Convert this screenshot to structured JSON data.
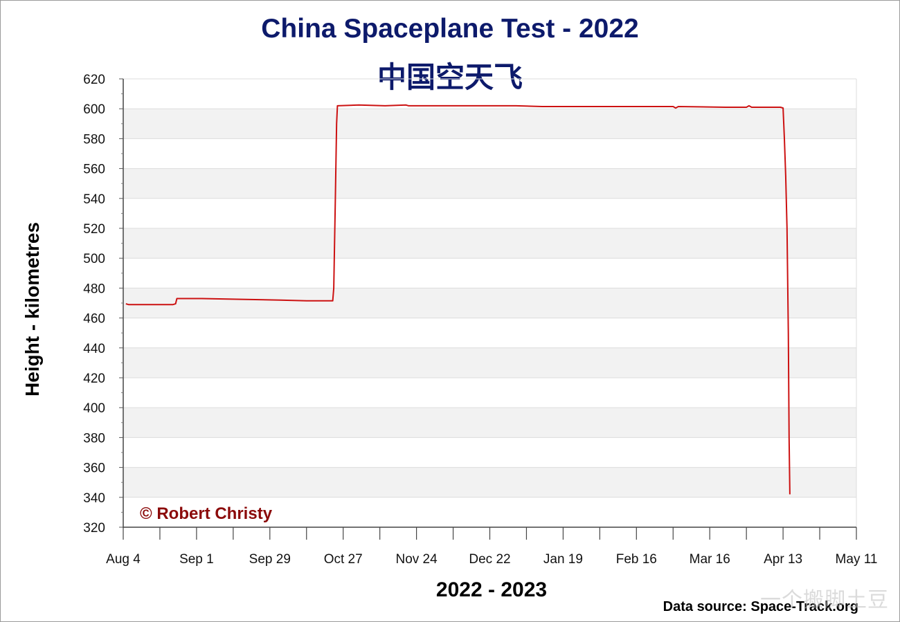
{
  "chart_data": {
    "type": "line",
    "title": "China Spaceplane Test - 2022",
    "subtitle": "中国空天飞",
    "xlabel": "2022 - 2023",
    "ylabel": "Height - kilometres",
    "ylim": [
      320,
      620
    ],
    "y_ticks": [
      320,
      340,
      360,
      380,
      400,
      420,
      440,
      460,
      480,
      500,
      520,
      540,
      560,
      580,
      600,
      620
    ],
    "x_ticks": [
      "Aug 4",
      "Sep 1",
      "Sep 29",
      "Oct 27",
      "Nov 24",
      "Dec 22",
      "Jan 19",
      "Feb 16",
      "Mar 16",
      "Apr 13",
      "May 11"
    ],
    "x_range_days": [
      0,
      280
    ],
    "grid": "horizontal bands",
    "series": [
      {
        "color": "#cc1111",
        "points": [
          [
            1,
            469.5
          ],
          [
            2,
            469.0
          ],
          [
            19,
            469.0
          ],
          [
            20,
            469.5
          ],
          [
            20.5,
            473.0
          ],
          [
            30,
            473.0
          ],
          [
            45,
            472.5
          ],
          [
            60,
            472.0
          ],
          [
            70,
            471.5
          ],
          [
            80,
            471.5
          ],
          [
            80.4,
            480
          ],
          [
            81,
            540
          ],
          [
            81.5,
            590
          ],
          [
            81.8,
            602.0
          ],
          [
            90,
            602.5
          ],
          [
            100,
            602.0
          ],
          [
            108,
            602.5
          ],
          [
            109,
            602.0
          ],
          [
            130,
            602.0
          ],
          [
            150,
            602.0
          ],
          [
            160,
            601.5
          ],
          [
            180,
            601.5
          ],
          [
            200,
            601.5
          ],
          [
            210,
            601.5
          ],
          [
            211,
            600.5
          ],
          [
            212,
            601.5
          ],
          [
            230,
            601.0
          ],
          [
            238,
            601.0
          ],
          [
            239,
            602.0
          ],
          [
            240,
            601.0
          ],
          [
            251,
            601.0
          ],
          [
            252,
            600.5
          ],
          [
            252.5,
            580
          ],
          [
            253,
            555
          ],
          [
            253.5,
            520
          ],
          [
            254,
            450
          ],
          [
            254.3,
            380
          ],
          [
            254.6,
            342
          ]
        ]
      }
    ]
  },
  "credit": "© Robert Christy",
  "data_source": "Data source: Space-Track.org",
  "watermark": "一个搬脚土豆"
}
